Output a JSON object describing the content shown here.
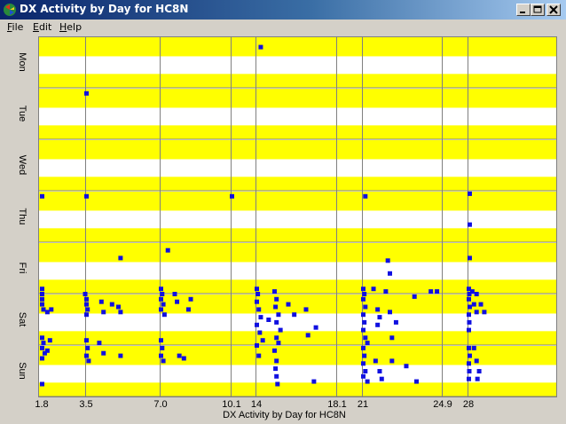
{
  "window": {
    "title": "DX Activity by Day for HC8N",
    "buttons": {
      "minimize": "minimize",
      "maximize": "maximize",
      "close": "close"
    }
  },
  "menu": {
    "items": [
      {
        "label": "File",
        "key": "F",
        "rest": "ile"
      },
      {
        "label": "Edit",
        "key": "E",
        "rest": "dit"
      },
      {
        "label": "Help",
        "key": "H",
        "rest": "elp"
      }
    ]
  },
  "colors": {
    "stripe": "#ffff00",
    "background": "#ffffff",
    "marker": "#1010e0",
    "gridline": "#808080"
  },
  "chart_data": {
    "type": "scatter",
    "title": "",
    "xlabel": "DX Activity by Day for HC8N",
    "ylabel": "",
    "days": [
      "Mon",
      "Tue",
      "Wed",
      "Thu",
      "Fri",
      "Sat",
      "Sun"
    ],
    "x_ticks": [
      {
        "label": "1.8",
        "value": 1.8
      },
      {
        "label": "3.5",
        "value": 3.5
      },
      {
        "label": "7.0",
        "value": 7.0
      },
      {
        "label": "10.1",
        "value": 10.1
      },
      {
        "label": "14",
        "value": 14
      },
      {
        "label": "18.1",
        "value": 18.1
      },
      {
        "label": "21",
        "value": 21
      },
      {
        "label": "24.9",
        "value": 24.9
      },
      {
        "label": "28",
        "value": 28
      }
    ],
    "points": [
      {
        "x": 14.2,
        "day": 0.2
      },
      {
        "x": 3.5,
        "day": 1.1
      },
      {
        "x": 1.8,
        "day": 3.1
      },
      {
        "x": 3.5,
        "day": 3.1
      },
      {
        "x": 10.1,
        "day": 3.1
      },
      {
        "x": 21.1,
        "day": 3.1
      },
      {
        "x": 28.1,
        "day": 3.05
      },
      {
        "x": 28.1,
        "day": 3.65
      },
      {
        "x": 5.1,
        "day": 4.3
      },
      {
        "x": 7.3,
        "day": 4.15
      },
      {
        "x": 22.2,
        "day": 4.35
      },
      {
        "x": 22.3,
        "day": 4.6
      },
      {
        "x": 28.1,
        "day": 4.3
      },
      {
        "x": 1.8,
        "day": 4.9
      },
      {
        "x": 1.8,
        "day": 5.0
      },
      {
        "x": 1.8,
        "day": 5.1
      },
      {
        "x": 1.8,
        "day": 5.2
      },
      {
        "x": 1.85,
        "day": 5.3
      },
      {
        "x": 2.0,
        "day": 5.35
      },
      {
        "x": 2.15,
        "day": 5.3
      },
      {
        "x": 3.45,
        "day": 5.0
      },
      {
        "x": 3.5,
        "day": 5.1
      },
      {
        "x": 3.5,
        "day": 5.2
      },
      {
        "x": 3.55,
        "day": 5.3
      },
      {
        "x": 3.5,
        "day": 5.4
      },
      {
        "x": 4.2,
        "day": 5.15
      },
      {
        "x": 4.3,
        "day": 5.35
      },
      {
        "x": 4.7,
        "day": 5.2
      },
      {
        "x": 5.0,
        "day": 5.25
      },
      {
        "x": 5.1,
        "day": 5.35
      },
      {
        "x": 7.0,
        "day": 4.9
      },
      {
        "x": 7.05,
        "day": 5.0
      },
      {
        "x": 7.0,
        "day": 5.1
      },
      {
        "x": 7.1,
        "day": 5.2
      },
      {
        "x": 7.0,
        "day": 5.3
      },
      {
        "x": 7.15,
        "day": 5.4
      },
      {
        "x": 7.6,
        "day": 5.0
      },
      {
        "x": 7.7,
        "day": 5.15
      },
      {
        "x": 8.3,
        "day": 5.1
      },
      {
        "x": 8.2,
        "day": 5.3
      },
      {
        "x": 14.0,
        "day": 4.9
      },
      {
        "x": 14.05,
        "day": 5.0
      },
      {
        "x": 14.0,
        "day": 5.15
      },
      {
        "x": 14.1,
        "day": 5.3
      },
      {
        "x": 14.2,
        "day": 5.45
      },
      {
        "x": 14.0,
        "day": 5.6
      },
      {
        "x": 14.15,
        "day": 5.75
      },
      {
        "x": 14.6,
        "day": 5.5
      },
      {
        "x": 14.3,
        "day": 5.9
      },
      {
        "x": 14.9,
        "day": 4.95
      },
      {
        "x": 15.0,
        "day": 5.1
      },
      {
        "x": 14.95,
        "day": 5.25
      },
      {
        "x": 15.1,
        "day": 5.4
      },
      {
        "x": 15.0,
        "day": 5.55
      },
      {
        "x": 15.2,
        "day": 5.7
      },
      {
        "x": 15.0,
        "day": 5.85
      },
      {
        "x": 15.1,
        "day": 5.95
      },
      {
        "x": 15.6,
        "day": 5.2
      },
      {
        "x": 15.9,
        "day": 5.4
      },
      {
        "x": 16.5,
        "day": 5.3
      },
      {
        "x": 17.0,
        "day": 5.65
      },
      {
        "x": 16.6,
        "day": 5.8
      },
      {
        "x": 21.0,
        "day": 4.9
      },
      {
        "x": 21.05,
        "day": 5.0
      },
      {
        "x": 21.0,
        "day": 5.1
      },
      {
        "x": 21.1,
        "day": 5.25
      },
      {
        "x": 21.0,
        "day": 5.4
      },
      {
        "x": 21.05,
        "day": 5.55
      },
      {
        "x": 21.0,
        "day": 5.7
      },
      {
        "x": 21.1,
        "day": 5.85
      },
      {
        "x": 21.2,
        "day": 5.95
      },
      {
        "x": 21.5,
        "day": 4.9
      },
      {
        "x": 22.1,
        "day": 4.95
      },
      {
        "x": 21.7,
        "day": 5.3
      },
      {
        "x": 21.8,
        "day": 5.45
      },
      {
        "x": 21.7,
        "day": 5.6
      },
      {
        "x": 22.3,
        "day": 5.35
      },
      {
        "x": 22.6,
        "day": 5.55
      },
      {
        "x": 22.4,
        "day": 5.85
      },
      {
        "x": 23.5,
        "day": 5.05
      },
      {
        "x": 24.3,
        "day": 4.95
      },
      {
        "x": 24.6,
        "day": 4.95
      },
      {
        "x": 28.0,
        "day": 4.9
      },
      {
        "x": 28.05,
        "day": 5.0
      },
      {
        "x": 28.0,
        "day": 5.1
      },
      {
        "x": 28.1,
        "day": 5.25
      },
      {
        "x": 28.0,
        "day": 5.4
      },
      {
        "x": 28.05,
        "day": 5.55
      },
      {
        "x": 28.0,
        "day": 5.7
      },
      {
        "x": 28.4,
        "day": 4.95
      },
      {
        "x": 28.9,
        "day": 5.0
      },
      {
        "x": 28.6,
        "day": 5.2
      },
      {
        "x": 28.9,
        "day": 5.35
      },
      {
        "x": 29.4,
        "day": 5.2
      },
      {
        "x": 29.8,
        "day": 5.35
      },
      {
        "x": 1.8,
        "day": 5.85
      },
      {
        "x": 1.85,
        "day": 5.95
      },
      {
        "x": 1.8,
        "day": 6.05
      },
      {
        "x": 1.9,
        "day": 6.15
      },
      {
        "x": 1.8,
        "day": 6.25
      },
      {
        "x": 2.1,
        "day": 5.9
      },
      {
        "x": 2.0,
        "day": 6.1
      },
      {
        "x": 1.8,
        "day": 6.75
      },
      {
        "x": 3.5,
        "day": 5.9
      },
      {
        "x": 3.55,
        "day": 6.05
      },
      {
        "x": 3.5,
        "day": 6.2
      },
      {
        "x": 3.6,
        "day": 6.3
      },
      {
        "x": 4.1,
        "day": 5.95
      },
      {
        "x": 4.3,
        "day": 6.15
      },
      {
        "x": 5.1,
        "day": 6.2
      },
      {
        "x": 7.0,
        "day": 5.9
      },
      {
        "x": 7.05,
        "day": 6.05
      },
      {
        "x": 7.0,
        "day": 6.2
      },
      {
        "x": 7.1,
        "day": 6.3
      },
      {
        "x": 7.8,
        "day": 6.2
      },
      {
        "x": 8.0,
        "day": 6.25
      },
      {
        "x": 14.0,
        "day": 6.0
      },
      {
        "x": 14.1,
        "day": 6.2
      },
      {
        "x": 14.9,
        "day": 6.1
      },
      {
        "x": 15.0,
        "day": 6.3
      },
      {
        "x": 14.95,
        "day": 6.45
      },
      {
        "x": 15.0,
        "day": 6.6
      },
      {
        "x": 15.05,
        "day": 6.75
      },
      {
        "x": 16.9,
        "day": 6.7
      },
      {
        "x": 21.0,
        "day": 6.05
      },
      {
        "x": 21.05,
        "day": 6.2
      },
      {
        "x": 21.0,
        "day": 6.35
      },
      {
        "x": 21.1,
        "day": 6.5
      },
      {
        "x": 21.0,
        "day": 6.6
      },
      {
        "x": 21.2,
        "day": 6.7
      },
      {
        "x": 21.6,
        "day": 6.3
      },
      {
        "x": 21.8,
        "day": 6.5
      },
      {
        "x": 21.9,
        "day": 6.65
      },
      {
        "x": 22.4,
        "day": 6.3
      },
      {
        "x": 23.1,
        "day": 6.4
      },
      {
        "x": 23.6,
        "day": 6.7
      },
      {
        "x": 28.0,
        "day": 6.05
      },
      {
        "x": 28.1,
        "day": 6.2
      },
      {
        "x": 28.0,
        "day": 6.35
      },
      {
        "x": 28.05,
        "day": 6.5
      },
      {
        "x": 28.0,
        "day": 6.65
      },
      {
        "x": 28.6,
        "day": 6.05
      },
      {
        "x": 28.9,
        "day": 6.3
      },
      {
        "x": 29.2,
        "day": 6.5
      },
      {
        "x": 29.0,
        "day": 6.65
      }
    ]
  }
}
